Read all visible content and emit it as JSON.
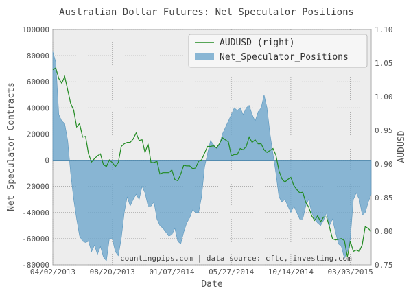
{
  "chart_data": {
    "type": "area",
    "title": "Australian Dollar Futures: Net Speculator Positions",
    "xlabel": "Date",
    "ylabel": "Net Speculator Contracts",
    "ylabel_right": "AUDUSD",
    "annotation": "countingpips.com | data source: cftc, investing.com",
    "x_tick_labels": [
      "04/02/2013",
      "08/20/2013",
      "01/07/2014",
      "05/27/2014",
      "10/14/2014",
      "03/03/2015"
    ],
    "x_tick_positions": [
      0,
      20,
      40,
      60,
      80,
      100
    ],
    "x_range": [
      0,
      107
    ],
    "y_left_ticks": [
      "100000",
      "80000",
      "60000",
      "40000",
      "20000",
      "0",
      "-20000",
      "-40000",
      "-60000",
      "-80000"
    ],
    "y_left_tick_values": [
      100000,
      80000,
      60000,
      40000,
      20000,
      0,
      -20000,
      -40000,
      -60000,
      -80000
    ],
    "y_left_range": [
      -80000,
      100000
    ],
    "y_right_ticks": [
      "1.10",
      "1.05",
      "1.00",
      "0.95",
      "0.90",
      "0.85",
      "0.80",
      "0.75"
    ],
    "y_right_tick_values": [
      1.1,
      1.05,
      1.0,
      0.95,
      0.9,
      0.85,
      0.8,
      0.75
    ],
    "y_right_range": [
      0.75,
      1.1
    ],
    "grid": true,
    "legend_placement": "top-right",
    "series": [
      {
        "name": "AUDUSD (right)",
        "axis": "right",
        "kind": "line",
        "color": "#228b22",
        "values": [
          1.04,
          1.043,
          1.027,
          1.02,
          1.03,
          1.01,
          0.99,
          0.98,
          0.955,
          0.96,
          0.94,
          0.941,
          0.915,
          0.903,
          0.908,
          0.912,
          0.915,
          0.899,
          0.896,
          0.906,
          0.902,
          0.896,
          0.902,
          0.926,
          0.93,
          0.932,
          0.932,
          0.937,
          0.946,
          0.935,
          0.936,
          0.917,
          0.93,
          0.902,
          0.902,
          0.904,
          0.885,
          0.887,
          0.887,
          0.887,
          0.891,
          0.877,
          0.875,
          0.885,
          0.898,
          0.897,
          0.897,
          0.893,
          0.894,
          0.904,
          0.906,
          0.916,
          0.926,
          0.926,
          0.927,
          0.924,
          0.93,
          0.939,
          0.936,
          0.933,
          0.912,
          0.914,
          0.914,
          0.923,
          0.921,
          0.926,
          0.94,
          0.932,
          0.936,
          0.93,
          0.93,
          0.921,
          0.917,
          0.92,
          0.923,
          0.913,
          0.89,
          0.878,
          0.873,
          0.877,
          0.88,
          0.868,
          0.862,
          0.857,
          0.858,
          0.843,
          0.836,
          0.823,
          0.816,
          0.823,
          0.814,
          0.821,
          0.821,
          0.806,
          0.789,
          0.787,
          0.788,
          0.789,
          0.786,
          0.762,
          0.785,
          0.77,
          0.772,
          0.77,
          0.78,
          0.807,
          0.804,
          0.8
        ]
      },
      {
        "name": "Net_Speculator_Positions",
        "axis": "left",
        "kind": "area",
        "color": "#6ea6cc",
        "values": [
          83000,
          75000,
          35000,
          30000,
          28000,
          15000,
          -10000,
          -30000,
          -45000,
          -58000,
          -62000,
          -63000,
          -62000,
          -70000,
          -65000,
          -72000,
          -66000,
          -74000,
          -77000,
          -60000,
          -60000,
          -70000,
          -73000,
          -60000,
          -40000,
          -28000,
          -35000,
          -30000,
          -26000,
          -30000,
          -20000,
          -25000,
          -35000,
          -35000,
          -32000,
          -45000,
          -50000,
          -52000,
          -55000,
          -58000,
          -57000,
          -52000,
          -62000,
          -64000,
          -55000,
          -48000,
          -44000,
          -38000,
          -40000,
          -40000,
          -28000,
          -5000,
          5000,
          15000,
          12000,
          9000,
          12000,
          20000,
          25000,
          30000,
          35000,
          40000,
          38000,
          40000,
          35000,
          40000,
          42000,
          35000,
          30000,
          37000,
          40000,
          50000,
          40000,
          20000,
          5000,
          -10000,
          -28000,
          -32000,
          -30000,
          -35000,
          -40000,
          -35000,
          -40000,
          -45000,
          -45000,
          -35000,
          -30000,
          -40000,
          -45000,
          -48000,
          -50000,
          -46000,
          -40000,
          -50000,
          -45000,
          -55000,
          -64000,
          -66000,
          -75000,
          -70000,
          -60000,
          -30000,
          -25000,
          -30000,
          -42000,
          -40000,
          -32000,
          -26000
        ]
      }
    ]
  }
}
